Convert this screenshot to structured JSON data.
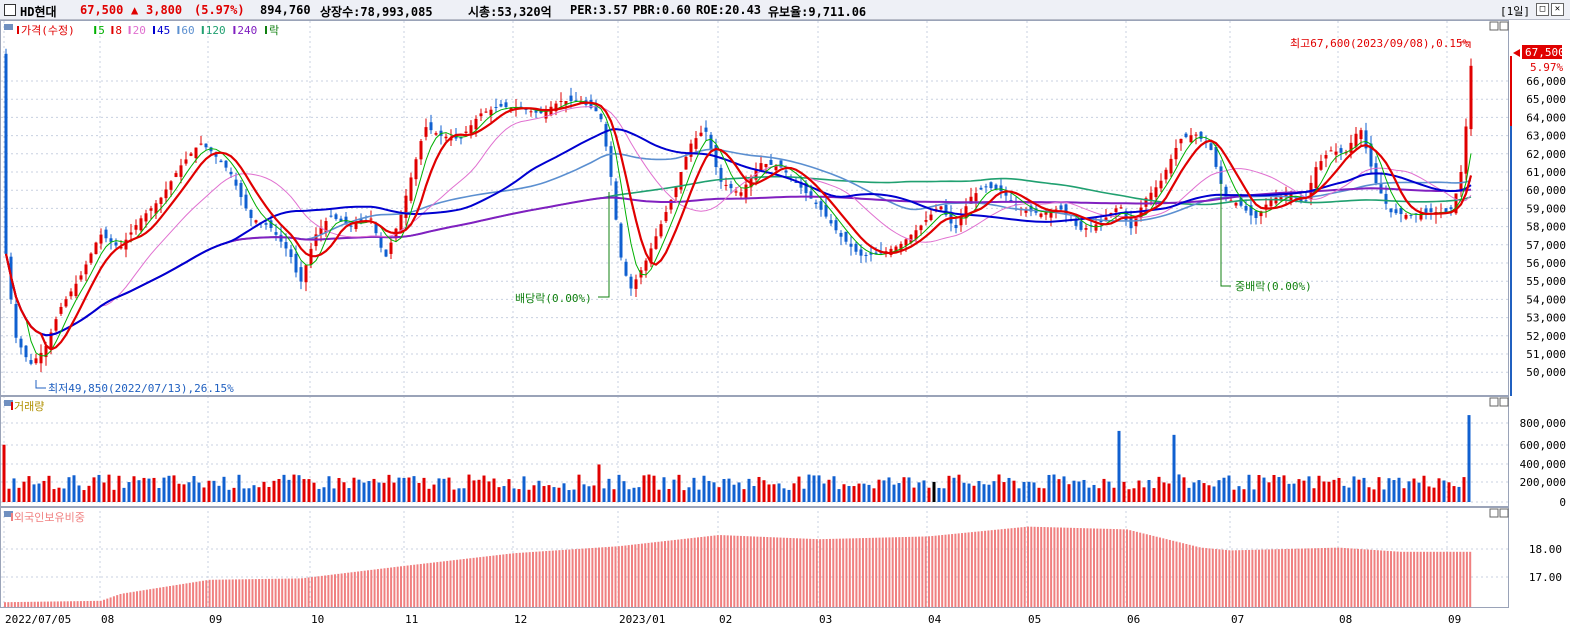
{
  "header": {
    "name": "HD현대",
    "price": "67,500",
    "change_arrow": "▲",
    "change": "3,800",
    "change_pct": "(5.97%)",
    "volume": "894,760",
    "listed_shares": "상장수:78,993,085",
    "market_cap": "시총:53,320억",
    "per": "PER:3.57",
    "pbr": "PBR:0.60",
    "roe": "ROE:20.43",
    "reserve_ratio": "유보율:9,711.06",
    "period": "[1일]"
  },
  "price_panel": {
    "legend": [
      {
        "label": "가격(수정)",
        "color": "#e00000"
      },
      {
        "label": "5",
        "color": "#00b000"
      },
      {
        "label": "8",
        "color": "#e00000"
      },
      {
        "label": "20",
        "color": "#e070d0"
      },
      {
        "label": "45",
        "color": "#0000d0"
      },
      {
        "label": "60",
        "color": "#5b8fd0"
      },
      {
        "label": "120",
        "color": "#20a070"
      },
      {
        "label": "240",
        "color": "#8020c0"
      },
      {
        "label": "락",
        "color": "#108010"
      }
    ],
    "y_ticks": [
      "66,000",
      "65,000",
      "64,000",
      "63,000",
      "62,000",
      "61,000",
      "60,000",
      "59,000",
      "58,000",
      "57,000",
      "56,000",
      "55,000",
      "54,000",
      "53,000",
      "52,000",
      "51,000",
      "50,000"
    ],
    "current_price_label": "67,500",
    "current_pct_label": "5.97%",
    "high_annotation": "최고67,600(2023/09/08),0.15%",
    "low_annotation": "최저49,850(2022/07/13),26.15%",
    "event_dividend": "배당락(0.00%)",
    "event_stock_dividend": "중배락(0.00%)"
  },
  "volume_panel": {
    "legend": "거래량",
    "y_ticks": [
      "800,000",
      "600,000",
      "400,000",
      "200,000",
      "0"
    ]
  },
  "foreign_panel": {
    "legend": "외국인보유비중",
    "y_ticks": [
      "18.00",
      "17.00"
    ]
  },
  "x_axis": {
    "labels": [
      "2022/07/05",
      "08",
      "09",
      "10",
      "11",
      "12",
      "2023/01",
      "02",
      "03",
      "04",
      "05",
      "06",
      "07",
      "08",
      "09"
    ]
  },
  "colors": {
    "up": "#e00000",
    "down": "#1060d0",
    "foreign_bar": "#f08080",
    "grid": "#c8d0e0"
  }
}
